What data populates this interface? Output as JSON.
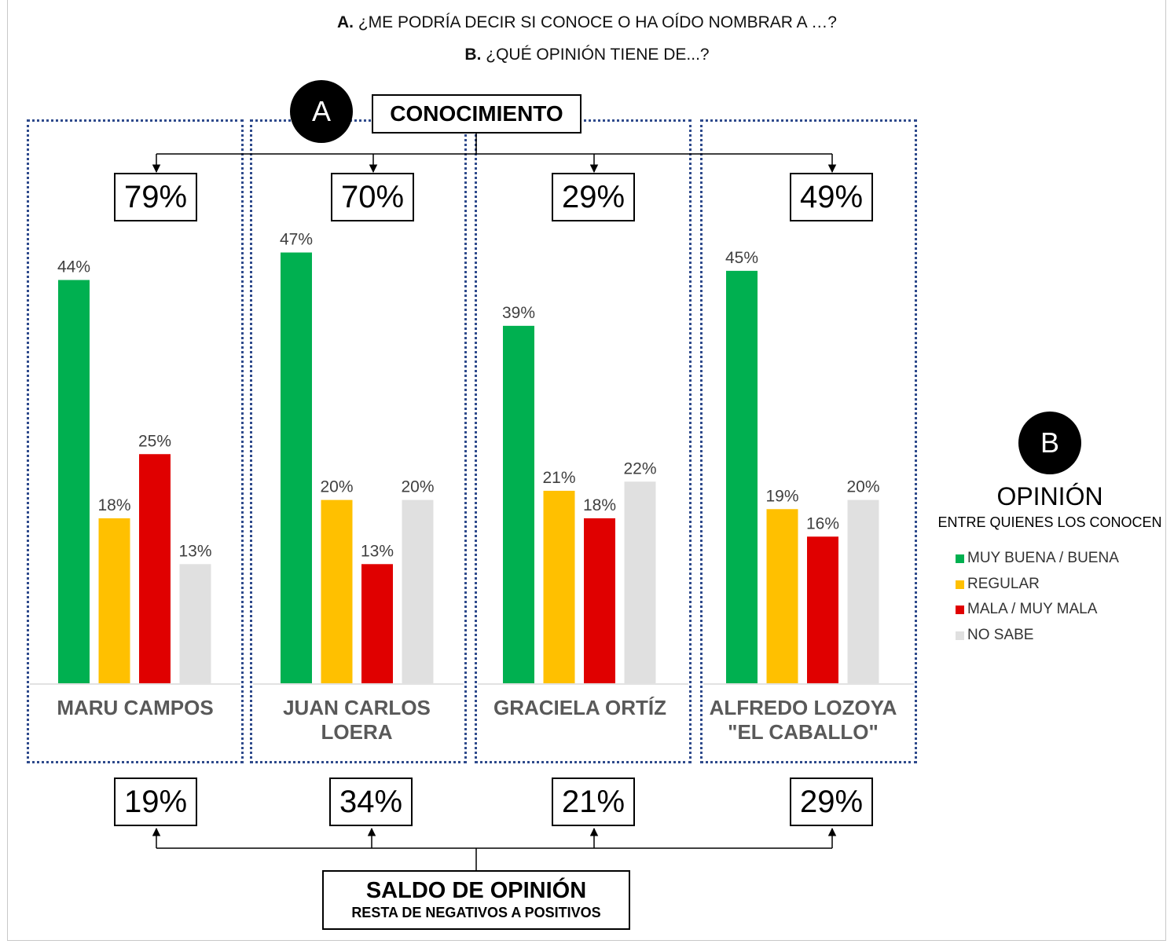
{
  "questions": {
    "a_prefix": "A.",
    "a_text": "¿ME PODRÍA DECIR SI CONOCE O HA OÍDO NOMBRAR A …?",
    "b_prefix": "B.",
    "b_text": "¿QUÉ OPINIÓN TIENE DE...?"
  },
  "section_a": {
    "badge": "A",
    "label": "CONOCIMIENTO"
  },
  "section_b": {
    "badge": "B",
    "title": "OPINIÓN",
    "subtitle": "ENTRE QUIENES LOS CONOCEN"
  },
  "saldo": {
    "title": "SALDO DE OPINIÓN",
    "subtitle": "RESTA DE NEGATIVOS A POSITIVOS"
  },
  "candidates": [
    {
      "name_line1": "MARU CAMPOS",
      "name_line2": "",
      "conocimiento": "79%",
      "saldo": "19%"
    },
    {
      "name_line1": "JUAN CARLOS",
      "name_line2": "LOERA",
      "conocimiento": "70%",
      "saldo": "34%"
    },
    {
      "name_line1": "GRACIELA ORTÍZ",
      "name_line2": "",
      "conocimiento": "29%",
      "saldo": "21%"
    },
    {
      "name_line1": "ALFREDO LOZOYA",
      "name_line2": "\"EL CABALLO\"",
      "conocimiento": "49%",
      "saldo": "29%"
    }
  ],
  "legend": [
    {
      "label": "MUY BUENA / BUENA",
      "color": "#00b050"
    },
    {
      "label": "REGULAR",
      "color": "#ffc000"
    },
    {
      "label": "MALA / MUY MALA",
      "color": "#e00000"
    },
    {
      "label": "NO SABE",
      "color": "#e0e0e0"
    }
  ],
  "chart_data": {
    "type": "bar",
    "categories": [
      "MARU CAMPOS",
      "JUAN CARLOS LOERA",
      "GRACIELA ORTÍZ",
      "ALFREDO LOZOYA \"EL CABALLO\""
    ],
    "series": [
      {
        "name": "MUY BUENA / BUENA",
        "color": "#00b050",
        "values": [
          44,
          47,
          39,
          45
        ]
      },
      {
        "name": "REGULAR",
        "color": "#ffc000",
        "values": [
          18,
          20,
          21,
          19
        ]
      },
      {
        "name": "MALA / MUY MALA",
        "color": "#e00000",
        "values": [
          25,
          13,
          18,
          16
        ]
      },
      {
        "name": "NO SABE",
        "color": "#e0e0e0",
        "values": [
          13,
          20,
          22,
          20
        ]
      }
    ],
    "value_suffix": "%",
    "ylim": [
      0,
      50
    ],
    "legend_position": "right",
    "grid": false
  }
}
